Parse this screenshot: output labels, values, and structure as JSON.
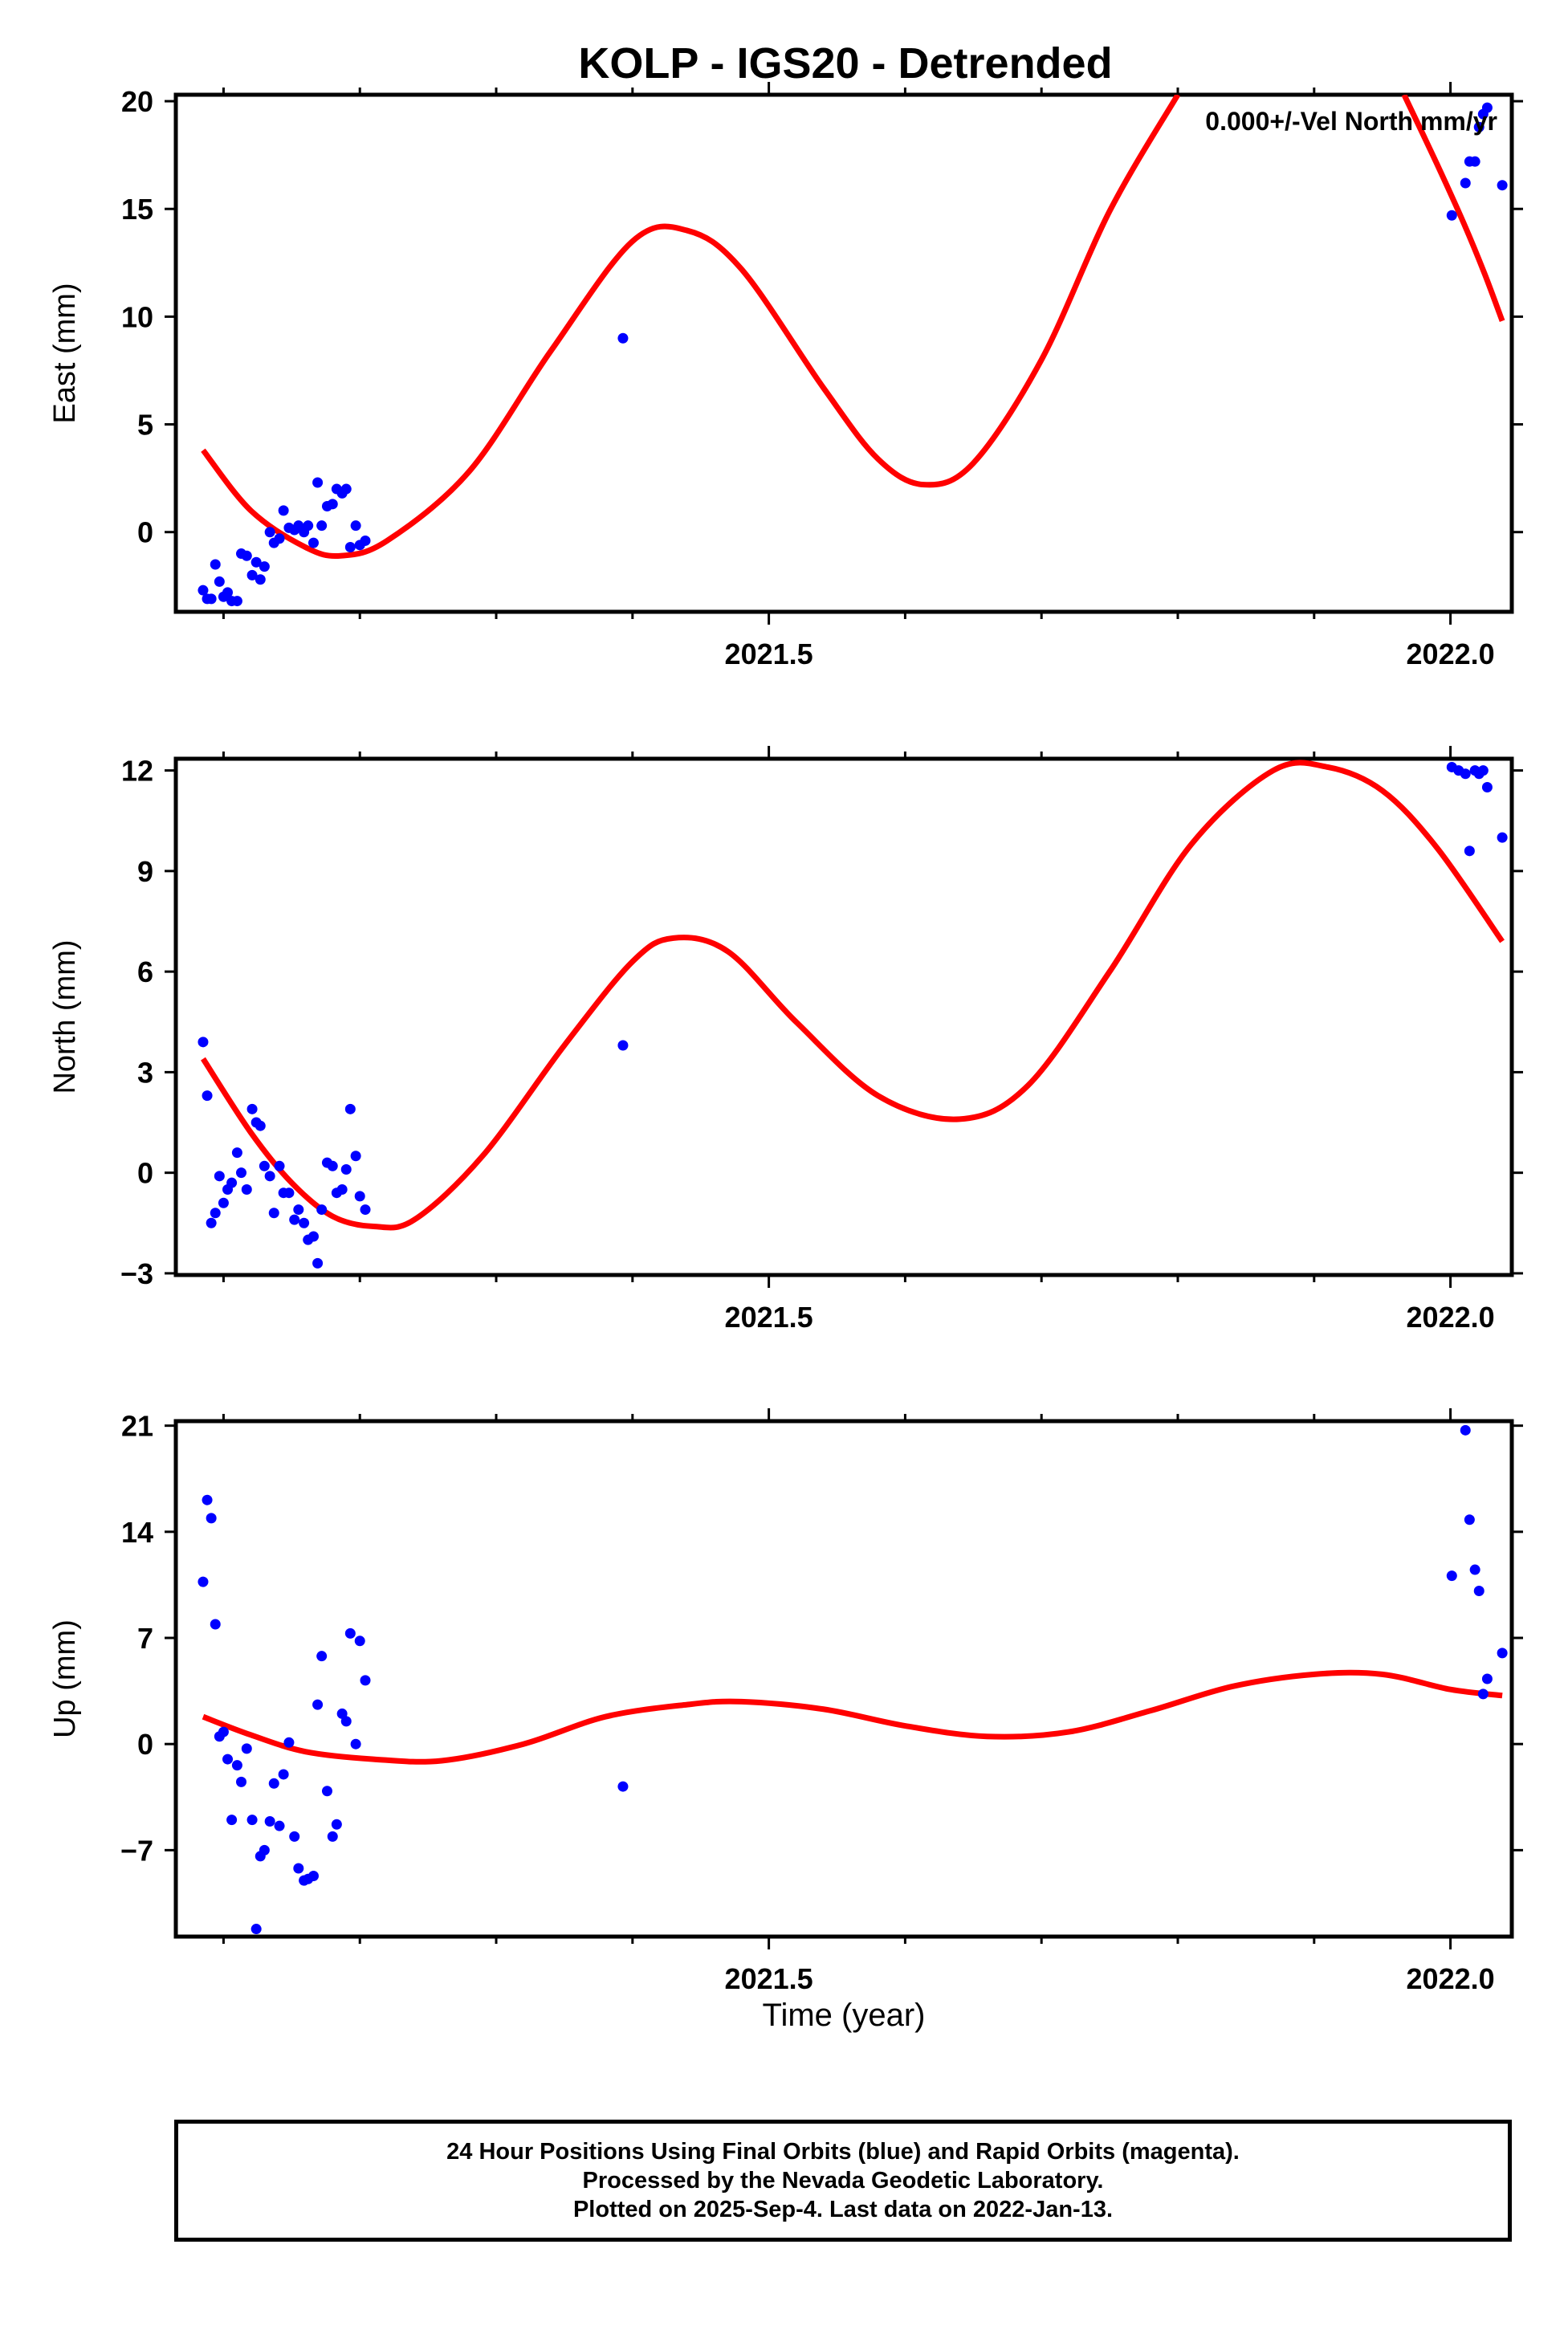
{
  "title": "KOLP - IGS20 - Detrended",
  "x_axis": {
    "label": "Time (year)",
    "tick_labels": [
      "2021.5",
      "2022.0"
    ]
  },
  "colors": {
    "final_orbits": "#0000ff",
    "model_fit": "#ff0000",
    "axes": "#000000"
  },
  "footer": {
    "lines": [
      "24 Hour Positions Using Final Orbits (blue) and Rapid Orbits (magenta).",
      "Processed by the Nevada Geodetic Laboratory.",
      "Plotted on 2025-Sep-4. Last data on 2022-Jan-13."
    ]
  },
  "chart_data": [
    {
      "type": "scatter",
      "title": "KOLP - IGS20 - Detrended",
      "ylabel": "East (mm)",
      "xlabel": "",
      "annotation": "0.000+/-Vel North mm/yr",
      "xlim": [
        2021.065,
        2022.045
      ],
      "ylim": [
        -3.7,
        20.3
      ],
      "yticks": [
        0,
        5,
        10,
        15,
        20
      ],
      "xticks_major": [
        2021.5,
        2022.0
      ],
      "xticks_minor": [
        2021.1,
        2021.2,
        2021.3,
        2021.4,
        2021.6,
        2021.7,
        2021.8,
        2021.9
      ],
      "grid": false,
      "series": [
        {
          "kind": "points",
          "values": [
            [
              2021.085,
              -2.7
            ],
            [
              2021.088,
              -3.1
            ],
            [
              2021.091,
              -3.1
            ],
            [
              2021.094,
              -1.5
            ],
            [
              2021.097,
              -2.3
            ],
            [
              2021.1,
              -3.0
            ],
            [
              2021.103,
              -2.8
            ],
            [
              2021.106,
              -3.2
            ],
            [
              2021.11,
              -3.2
            ],
            [
              2021.113,
              -1.0
            ],
            [
              2021.117,
              -1.1
            ],
            [
              2021.121,
              -2.0
            ],
            [
              2021.124,
              -1.4
            ],
            [
              2021.127,
              -2.2
            ],
            [
              2021.13,
              -1.6
            ],
            [
              2021.134,
              0.0
            ],
            [
              2021.137,
              -0.5
            ],
            [
              2021.141,
              -0.3
            ],
            [
              2021.144,
              1.0
            ],
            [
              2021.148,
              0.2
            ],
            [
              2021.152,
              0.1
            ],
            [
              2021.155,
              0.3
            ],
            [
              2021.159,
              0.0
            ],
            [
              2021.162,
              0.3
            ],
            [
              2021.166,
              -0.5
            ],
            [
              2021.169,
              2.3
            ],
            [
              2021.172,
              0.3
            ],
            [
              2021.176,
              1.2
            ],
            [
              2021.18,
              1.3
            ],
            [
              2021.183,
              2.0
            ],
            [
              2021.187,
              1.8
            ],
            [
              2021.19,
              2.0
            ],
            [
              2021.193,
              -0.7
            ],
            [
              2021.197,
              0.3
            ],
            [
              2021.2,
              -0.6
            ],
            [
              2021.204,
              -0.4
            ],
            [
              2021.393,
              9.0
            ],
            [
              2022.001,
              14.7
            ],
            [
              2022.011,
              16.2
            ],
            [
              2022.014,
              17.2
            ],
            [
              2022.018,
              17.2
            ],
            [
              2022.021,
              18.8
            ],
            [
              2022.024,
              19.4
            ],
            [
              2022.027,
              19.7
            ],
            [
              2022.038,
              16.1
            ]
          ]
        },
        {
          "kind": "model",
          "values": [
            [
              2021.085,
              3.8
            ],
            [
              2021.12,
              1.0
            ],
            [
              2021.16,
              -0.7
            ],
            [
              2021.186,
              -1.1
            ],
            [
              2021.22,
              -0.4
            ],
            [
              2021.28,
              2.8
            ],
            [
              2021.34,
              8.4
            ],
            [
              2021.4,
              13.5
            ],
            [
              2021.44,
              14.0
            ],
            [
              2021.48,
              12.2
            ],
            [
              2021.54,
              6.7
            ],
            [
              2021.58,
              3.4
            ],
            [
              2021.614,
              2.2
            ],
            [
              2021.65,
              3.2
            ],
            [
              2021.7,
              8.0
            ],
            [
              2021.75,
              14.9
            ],
            [
              2021.8,
              20.3
            ]
          ]
        },
        {
          "kind": "model",
          "values": [
            [
              2021.966,
              20.3
            ],
            [
              2021.99,
              17.1
            ],
            [
              2022.01,
              14.3
            ],
            [
              2022.025,
              12.0
            ],
            [
              2022.038,
              9.8
            ]
          ]
        }
      ]
    },
    {
      "type": "scatter",
      "title": "",
      "ylabel": "North (mm)",
      "xlabel": "",
      "xlim": [
        2021.065,
        2022.045
      ],
      "ylim": [
        -3.05,
        12.35
      ],
      "yticks": [
        -3,
        0,
        3,
        6,
        9,
        12
      ],
      "xticks_major": [
        2021.5,
        2022.0
      ],
      "xticks_minor": [
        2021.1,
        2021.2,
        2021.3,
        2021.4,
        2021.6,
        2021.7,
        2021.8,
        2021.9
      ],
      "grid": false,
      "series": [
        {
          "kind": "points",
          "values": [
            [
              2021.085,
              3.9
            ],
            [
              2021.088,
              2.3
            ],
            [
              2021.091,
              -1.5
            ],
            [
              2021.094,
              -1.2
            ],
            [
              2021.097,
              -0.1
            ],
            [
              2021.1,
              -0.9
            ],
            [
              2021.103,
              -0.5
            ],
            [
              2021.106,
              -0.3
            ],
            [
              2021.11,
              0.6
            ],
            [
              2021.113,
              0.0
            ],
            [
              2021.117,
              -0.5
            ],
            [
              2021.121,
              1.9
            ],
            [
              2021.124,
              1.5
            ],
            [
              2021.127,
              1.4
            ],
            [
              2021.13,
              0.2
            ],
            [
              2021.134,
              -0.1
            ],
            [
              2021.137,
              -1.2
            ],
            [
              2021.141,
              0.2
            ],
            [
              2021.144,
              -0.6
            ],
            [
              2021.148,
              -0.6
            ],
            [
              2021.152,
              -1.4
            ],
            [
              2021.155,
              -1.1
            ],
            [
              2021.159,
              -1.5
            ],
            [
              2021.162,
              -2.0
            ],
            [
              2021.166,
              -1.9
            ],
            [
              2021.169,
              -2.7
            ],
            [
              2021.172,
              -1.1
            ],
            [
              2021.176,
              0.3
            ],
            [
              2021.18,
              0.2
            ],
            [
              2021.183,
              -0.6
            ],
            [
              2021.187,
              -0.5
            ],
            [
              2021.19,
              0.1
            ],
            [
              2021.193,
              1.9
            ],
            [
              2021.197,
              0.5
            ],
            [
              2021.2,
              -0.7
            ],
            [
              2021.204,
              -1.1
            ],
            [
              2021.393,
              3.8
            ],
            [
              2022.001,
              12.1
            ],
            [
              2022.006,
              12.0
            ],
            [
              2022.011,
              11.9
            ],
            [
              2022.014,
              9.6
            ],
            [
              2022.018,
              12.0
            ],
            [
              2022.021,
              11.9
            ],
            [
              2022.024,
              12.0
            ],
            [
              2022.027,
              11.5
            ],
            [
              2022.038,
              10.0
            ]
          ]
        },
        {
          "kind": "model",
          "values": [
            [
              2021.085,
              3.4
            ],
            [
              2021.12,
              1.2
            ],
            [
              2021.15,
              -0.3
            ],
            [
              2021.18,
              -1.3
            ],
            [
              2021.21,
              -1.6
            ],
            [
              2021.24,
              -1.4
            ],
            [
              2021.29,
              0.5
            ],
            [
              2021.35,
              3.8
            ],
            [
              2021.4,
              6.3
            ],
            [
              2021.43,
              7.0
            ],
            [
              2021.47,
              6.6
            ],
            [
              2021.52,
              4.5
            ],
            [
              2021.58,
              2.3
            ],
            [
              2021.64,
              1.6
            ],
            [
              2021.69,
              2.6
            ],
            [
              2021.75,
              6.0
            ],
            [
              2021.81,
              9.8
            ],
            [
              2021.87,
              12.0
            ],
            [
              2021.91,
              12.1
            ],
            [
              2021.95,
              11.4
            ],
            [
              2021.99,
              9.7
            ],
            [
              2022.038,
              6.9
            ]
          ]
        }
      ]
    },
    {
      "type": "scatter",
      "title": "",
      "ylabel": "Up (mm)",
      "xlabel": "Time (year)",
      "xlim": [
        2021.065,
        2022.045
      ],
      "ylim": [
        -12.7,
        21.3
      ],
      "yticks": [
        -7,
        0,
        7,
        14,
        21
      ],
      "xticks_major": [
        2021.5,
        2022.0
      ],
      "xticks_minor": [
        2021.1,
        2021.2,
        2021.3,
        2021.4,
        2021.6,
        2021.7,
        2021.8,
        2021.9
      ],
      "grid": false,
      "series": [
        {
          "kind": "points",
          "values": [
            [
              2021.085,
              10.7
            ],
            [
              2021.088,
              16.1
            ],
            [
              2021.091,
              14.9
            ],
            [
              2021.094,
              7.9
            ],
            [
              2021.097,
              0.5
            ],
            [
              2021.1,
              0.8
            ],
            [
              2021.103,
              -1.0
            ],
            [
              2021.106,
              -5.0
            ],
            [
              2021.11,
              -1.4
            ],
            [
              2021.113,
              -2.5
            ],
            [
              2021.117,
              -0.3
            ],
            [
              2021.121,
              -5.0
            ],
            [
              2021.124,
              -12.2
            ],
            [
              2021.127,
              -7.4
            ],
            [
              2021.13,
              -7.0
            ],
            [
              2021.134,
              -5.1
            ],
            [
              2021.137,
              -2.6
            ],
            [
              2021.141,
              -5.4
            ],
            [
              2021.144,
              -2.0
            ],
            [
              2021.148,
              0.1
            ],
            [
              2021.152,
              -6.1
            ],
            [
              2021.155,
              -8.2
            ],
            [
              2021.159,
              -9.0
            ],
            [
              2021.162,
              -8.9
            ],
            [
              2021.166,
              -8.7
            ],
            [
              2021.169,
              2.6
            ],
            [
              2021.172,
              5.8
            ],
            [
              2021.176,
              -3.1
            ],
            [
              2021.18,
              -6.1
            ],
            [
              2021.183,
              -5.3
            ],
            [
              2021.187,
              2.0
            ],
            [
              2021.19,
              1.5
            ],
            [
              2021.193,
              7.3
            ],
            [
              2021.197,
              0.0
            ],
            [
              2021.2,
              6.8
            ],
            [
              2021.204,
              4.2
            ],
            [
              2021.393,
              -2.8
            ],
            [
              2022.001,
              11.1
            ],
            [
              2022.011,
              20.7
            ],
            [
              2022.014,
              14.8
            ],
            [
              2022.018,
              11.5
            ],
            [
              2022.021,
              10.1
            ],
            [
              2022.024,
              3.3
            ],
            [
              2022.027,
              4.3
            ],
            [
              2022.038,
              6.0
            ]
          ]
        },
        {
          "kind": "model",
          "values": [
            [
              2021.085,
              1.8
            ],
            [
              2021.12,
              0.6
            ],
            [
              2021.16,
              -0.5
            ],
            [
              2021.21,
              -1.0
            ],
            [
              2021.26,
              -1.1
            ],
            [
              2021.32,
              0.0
            ],
            [
              2021.38,
              1.8
            ],
            [
              2021.44,
              2.6
            ],
            [
              2021.48,
              2.8
            ],
            [
              2021.54,
              2.3
            ],
            [
              2021.6,
              1.2
            ],
            [
              2021.66,
              0.5
            ],
            [
              2021.72,
              0.8
            ],
            [
              2021.78,
              2.2
            ],
            [
              2021.84,
              3.8
            ],
            [
              2021.9,
              4.6
            ],
            [
              2021.95,
              4.6
            ],
            [
              2022.0,
              3.6
            ],
            [
              2022.038,
              3.2
            ]
          ]
        }
      ]
    }
  ]
}
